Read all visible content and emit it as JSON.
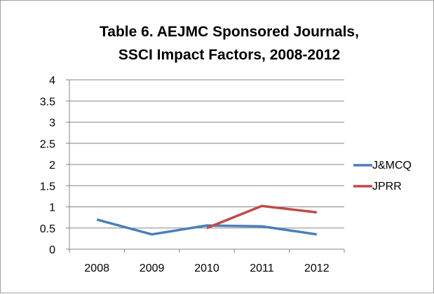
{
  "chart_data": {
    "type": "line",
    "title_lines": [
      "Table 6. AEJMC Sponsored Journals,",
      "SSCI Impact Factors, 2008-2012"
    ],
    "categories": [
      "2008",
      "2009",
      "2010",
      "2011",
      "2012"
    ],
    "series": [
      {
        "name": "J&MCQ",
        "color": "#4a7ebb",
        "values": [
          0.7,
          0.35,
          0.56,
          0.54,
          0.35
        ]
      },
      {
        "name": "JPRR",
        "color": "#be4b48",
        "values": [
          null,
          null,
          0.5,
          1.02,
          0.87
        ]
      }
    ],
    "ylim": [
      0,
      4
    ],
    "y_ticks": [
      "0",
      "0.5",
      "1",
      "1.5",
      "2",
      "2.5",
      "3",
      "3.5",
      "4"
    ],
    "y_tick_values": [
      0,
      0.5,
      1,
      1.5,
      2,
      2.5,
      3,
      3.5,
      4
    ],
    "grid": true,
    "legend_position": "right",
    "xlabel": "",
    "ylabel": ""
  }
}
